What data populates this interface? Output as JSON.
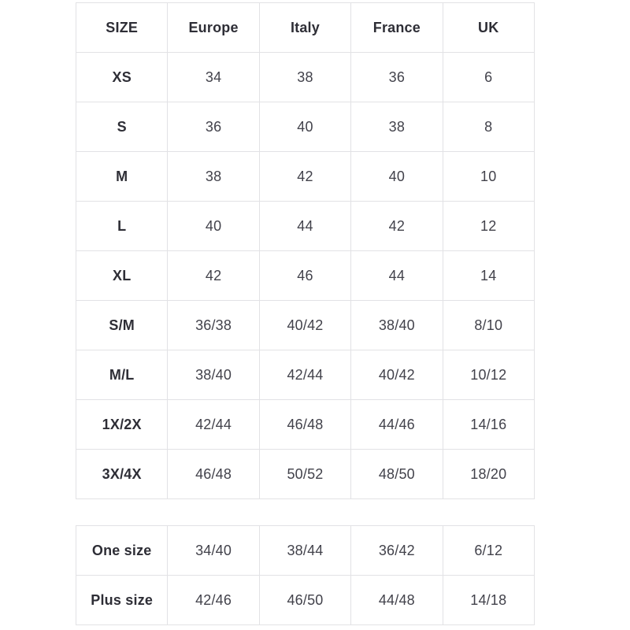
{
  "colors": {
    "background": "#ffffff",
    "border": "#e2e2e5",
    "header_text": "#2e2e36",
    "cell_text": "#42424b"
  },
  "main_table": {
    "headers": [
      "SIZE",
      "Europe",
      "Italy",
      "France",
      "UK"
    ],
    "rows": [
      {
        "size": "XS",
        "values": [
          "34",
          "38",
          "36",
          "6"
        ]
      },
      {
        "size": "S",
        "values": [
          "36",
          "40",
          "38",
          "8"
        ]
      },
      {
        "size": "M",
        "values": [
          "38",
          "42",
          "40",
          "10"
        ]
      },
      {
        "size": "L",
        "values": [
          "40",
          "44",
          "42",
          "12"
        ]
      },
      {
        "size": "XL",
        "values": [
          "42",
          "46",
          "44",
          "14"
        ]
      },
      {
        "size": "S/M",
        "values": [
          "36/38",
          "40/42",
          "38/40",
          "8/10"
        ]
      },
      {
        "size": "M/L",
        "values": [
          "38/40",
          "42/44",
          "40/42",
          "10/12"
        ]
      },
      {
        "size": "1X/2X",
        "values": [
          "42/44",
          "46/48",
          "44/46",
          "14/16"
        ]
      },
      {
        "size": "3X/4X",
        "values": [
          "46/48",
          "50/52",
          "48/50",
          "18/20"
        ]
      }
    ]
  },
  "extra_table": {
    "rows": [
      {
        "size": "One size",
        "values": [
          "34/40",
          "38/44",
          "36/42",
          "6/12"
        ]
      },
      {
        "size": "Plus size",
        "values": [
          "42/46",
          "46/50",
          "44/48",
          "14/18"
        ]
      }
    ]
  }
}
